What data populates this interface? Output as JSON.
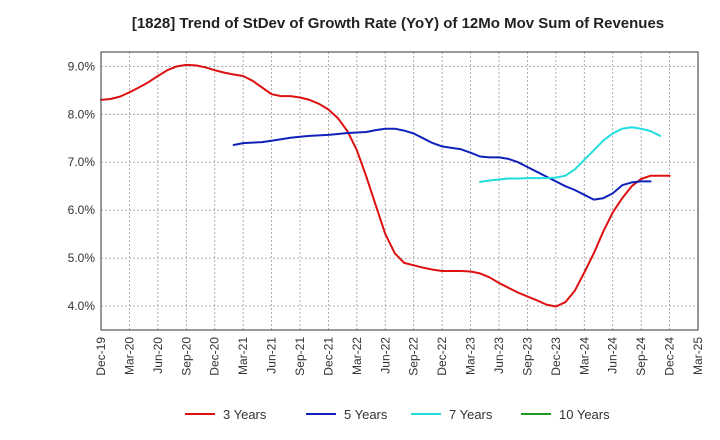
{
  "chart_data": {
    "type": "line",
    "title": "[1828]  Trend of StDev of Growth Rate (YoY) of 12Mo Mov Sum of Revenues",
    "xlabel": "",
    "ylabel": "",
    "ylim": [
      3.5,
      9.3
    ],
    "y_ticks": [
      4.0,
      5.0,
      6.0,
      7.0,
      8.0,
      9.0
    ],
    "y_tick_labels": [
      "4.0%",
      "5.0%",
      "6.0%",
      "7.0%",
      "8.0%",
      "9.0%"
    ],
    "x_tick_labels": [
      "Dec-19",
      "Mar-20",
      "Jun-20",
      "Sep-20",
      "Dec-20",
      "Mar-21",
      "Jun-21",
      "Sep-21",
      "Dec-21",
      "Mar-22",
      "Jun-22",
      "Sep-22",
      "Dec-22",
      "Mar-23",
      "Jun-23",
      "Sep-23",
      "Dec-23",
      "Mar-24",
      "Jun-24",
      "Sep-24",
      "Dec-24",
      "Mar-25"
    ],
    "x_index_range": [
      0,
      63
    ],
    "grid": true,
    "legend_position": "bottom",
    "series": [
      {
        "name": "3 Years",
        "color": "#dd1111",
        "start_index": 0,
        "values": [
          8.3,
          8.32,
          8.37,
          8.46,
          8.56,
          8.67,
          8.8,
          8.92,
          9.0,
          9.03,
          9.02,
          8.98,
          8.92,
          8.87,
          8.83,
          8.8,
          8.7,
          8.56,
          8.42,
          8.38,
          8.38,
          8.35,
          8.3,
          8.22,
          8.1,
          7.92,
          7.65,
          7.25,
          6.7,
          6.1,
          5.5,
          5.1,
          4.9,
          4.85,
          4.8,
          4.76,
          4.73,
          4.73,
          4.73,
          4.72,
          4.68,
          4.6,
          4.48,
          4.38,
          4.28,
          4.2,
          4.12,
          4.03,
          3.99,
          4.08,
          4.32,
          4.7,
          5.1,
          5.55,
          5.95,
          6.25,
          6.5,
          6.65,
          6.72,
          6.72,
          6.72
        ]
      },
      {
        "name": "5 Years",
        "color": "#1122bb",
        "start_index": 14,
        "values": [
          7.36,
          7.4,
          7.41,
          7.42,
          7.45,
          7.48,
          7.51,
          7.53,
          7.55,
          7.56,
          7.57,
          7.59,
          7.61,
          7.62,
          7.63,
          7.67,
          7.7,
          7.7,
          7.66,
          7.6,
          7.5,
          7.4,
          7.33,
          7.3,
          7.27,
          7.2,
          7.12,
          7.1,
          7.1,
          7.07,
          7.0,
          6.9,
          6.8,
          6.7,
          6.6,
          6.5,
          6.42,
          6.32,
          6.22,
          6.25,
          6.35,
          6.52,
          6.58,
          6.6,
          6.6
        ]
      },
      {
        "name": "7 Years",
        "color": "#22dddd",
        "start_index": 40,
        "values": [
          6.59,
          6.62,
          6.64,
          6.66,
          6.66,
          6.67,
          6.67,
          6.67,
          6.68,
          6.72,
          6.85,
          7.05,
          7.25,
          7.45,
          7.6,
          7.7,
          7.73,
          7.7,
          7.65,
          7.55
        ]
      },
      {
        "name": "10 Years",
        "color": "#229922",
        "start_index": 0,
        "values": []
      }
    ]
  }
}
